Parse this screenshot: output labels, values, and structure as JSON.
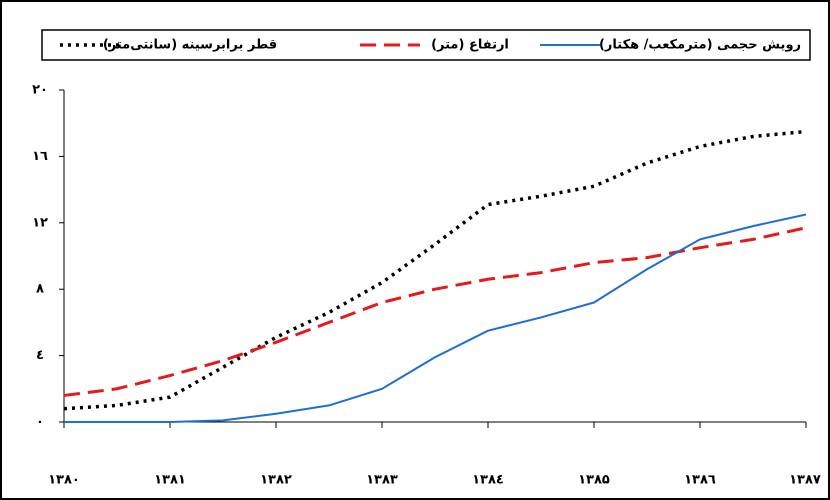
{
  "chart_data": {
    "type": "line",
    "x": [
      1380,
      1380.5,
      1381,
      1381.5,
      1382,
      1382.5,
      1383,
      1383.5,
      1384,
      1384.5,
      1385,
      1385.5,
      1386,
      1386.5,
      1387
    ],
    "series": [
      {
        "name": "قطر برابرسینه (سانتی‌متر)",
        "color": "#000000",
        "dash": "dotted",
        "values": [
          0.8,
          1.0,
          1.5,
          3.3,
          5.1,
          6.6,
          8.4,
          10.7,
          13.1,
          13.6,
          14.2,
          15.6,
          16.6,
          17.2,
          17.5
        ]
      },
      {
        "name": "ارتفاع (متر)",
        "color": "#e41a1c",
        "dash": "dashed",
        "values": [
          1.6,
          2.0,
          2.8,
          3.7,
          4.8,
          6.0,
          7.2,
          8.0,
          8.6,
          9.0,
          9.6,
          9.9,
          10.5,
          11.0,
          11.7
        ]
      },
      {
        "name": "رویش حجمی (مترمکعب/ هکتار)",
        "color": "#1f6fd1",
        "dash": "solid",
        "values": [
          0,
          0,
          0,
          0.1,
          0.5,
          1.0,
          2.0,
          3.9,
          5.5,
          6.3,
          7.2,
          9.2,
          11.0,
          11.8,
          12.5
        ]
      }
    ],
    "xlim": [
      1380,
      1387
    ],
    "xticks": [
      {
        "value": 1380,
        "label": "۱۳۸۰"
      },
      {
        "value": 1381,
        "label": "۱۳۸۱"
      },
      {
        "value": 1382,
        "label": "۱۳۸۲"
      },
      {
        "value": 1383,
        "label": "۱۳۸۳"
      },
      {
        "value": 1384,
        "label": "۱۳۸٤"
      },
      {
        "value": 1385,
        "label": "۱۳۸۵"
      },
      {
        "value": 1386,
        "label": "۱۳۸٦"
      },
      {
        "value": 1387,
        "label": "۱۳۸۷"
      }
    ],
    "ylim": [
      0,
      20
    ],
    "yticks": [
      {
        "value": 0,
        "label": "۰"
      },
      {
        "value": 4,
        "label": "٤"
      },
      {
        "value": 8,
        "label": "۸"
      },
      {
        "value": 12,
        "label": "۱۲"
      },
      {
        "value": 16,
        "label": "۱٦"
      },
      {
        "value": 20,
        "label": "۲۰"
      }
    ],
    "legend": "top"
  }
}
